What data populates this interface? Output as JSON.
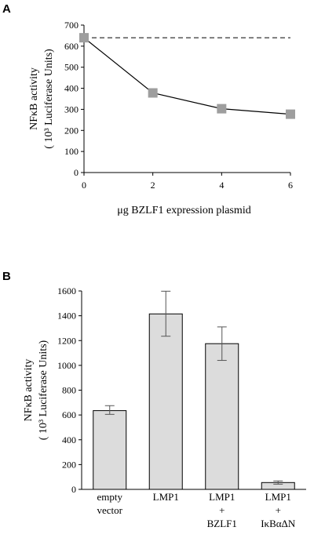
{
  "chart_data": [
    {
      "panel": "A",
      "type": "line",
      "xlabel": "μg BZLF1 expression plasmid",
      "ylabel_line1": "NFκB activity",
      "ylabel_line2": "( 10³ Luciferase Units)",
      "x": [
        0,
        2,
        4,
        6
      ],
      "series": [
        {
          "values": [
            640,
            378,
            303,
            277
          ],
          "marker": "square",
          "color": "#9e9e9e"
        }
      ],
      "reference_line": {
        "value": 640,
        "style": "dashed"
      },
      "xlim": [
        0,
        6
      ],
      "ylim": [
        0,
        700
      ],
      "xticks": [
        "0",
        "2",
        "4",
        "6"
      ],
      "yticks": [
        "0",
        "100",
        "200",
        "300",
        "400",
        "500",
        "600",
        "700"
      ],
      "grid": false
    },
    {
      "panel": "B",
      "type": "bar",
      "ylabel_line1": "NFκB activity",
      "ylabel_line2": "( 10³ Luciferase Units)",
      "categories": [
        {
          "line1": "empty",
          "line2": "vector",
          "line3": ""
        },
        {
          "line1": "LMP1",
          "line2": "",
          "line3": ""
        },
        {
          "line1": "LMP1",
          "line2": "+",
          "line3": "BZLF1"
        },
        {
          "line1": "LMP1",
          "line2": "+",
          "line3": "IκBαΔN"
        }
      ],
      "values": [
        635,
        1415,
        1175,
        55
      ],
      "error_low": [
        605,
        1235,
        1040,
        42
      ],
      "error_high": [
        675,
        1598,
        1310,
        68
      ],
      "ylim": [
        0,
        1600
      ],
      "yticks": [
        "0",
        "200",
        "400",
        "600",
        "800",
        "1000",
        "1200",
        "1400",
        "1600"
      ],
      "bar_color": "#dcdcdc",
      "grid": false
    }
  ]
}
